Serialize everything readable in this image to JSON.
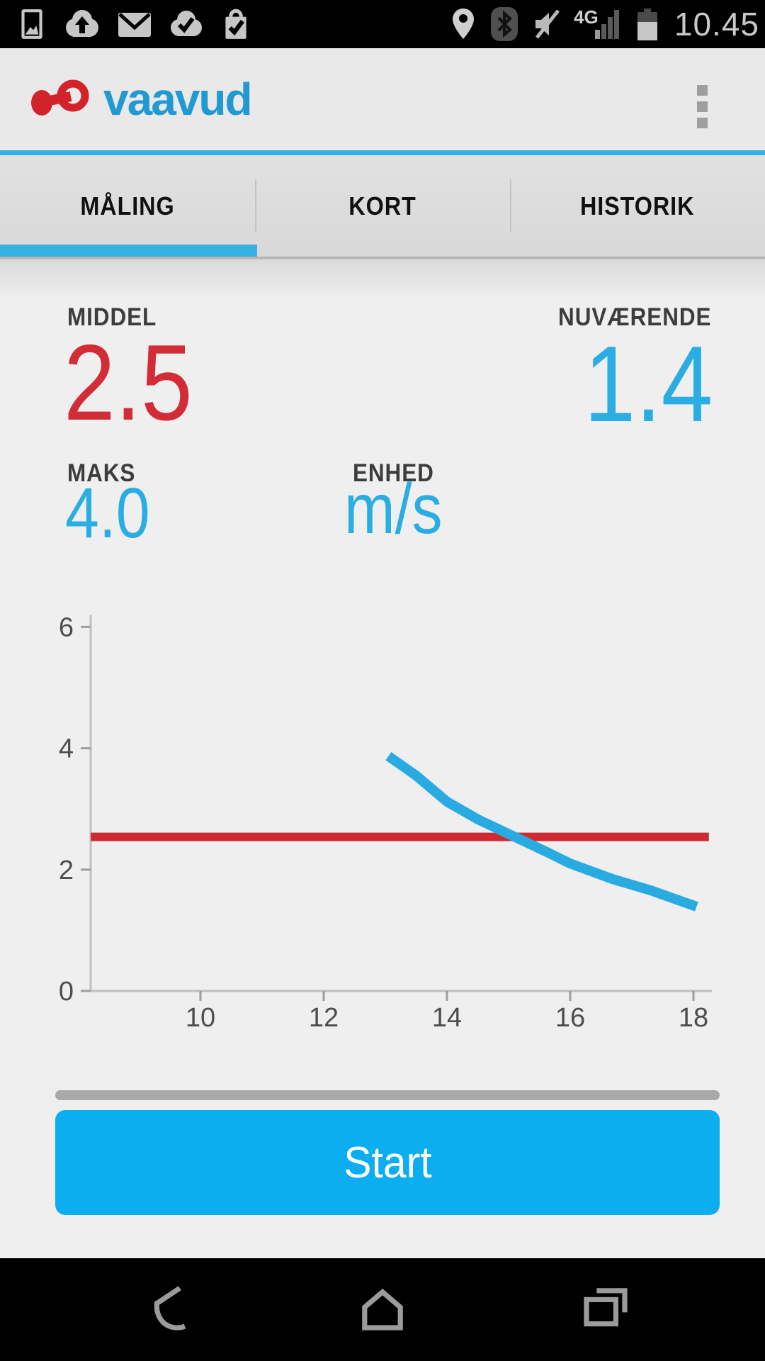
{
  "status_bar": {
    "time": "10.45",
    "network_label": "4G",
    "left_icons": [
      "gallery",
      "cloud-upload",
      "email",
      "cloud-done",
      "store-update"
    ],
    "right_icons": [
      "location",
      "bluetooth",
      "volume-muted",
      "signal-4g",
      "battery"
    ]
  },
  "header": {
    "brand": "vaavud"
  },
  "tabs": [
    {
      "label": "MÅLING",
      "active": true
    },
    {
      "label": "KORT",
      "active": false
    },
    {
      "label": "HISTORIK",
      "active": false
    }
  ],
  "stats": {
    "middel_label": "MIDDEL",
    "middel_value": "2.5",
    "nuvaerende_label": "NUVÆRENDE",
    "nuvaerende_value": "1.4",
    "maks_label": "MAKS",
    "maks_value": "4.0",
    "enhed_label": "ENHED",
    "enhed_value": "m/s"
  },
  "chart_data": {
    "type": "line",
    "title": "",
    "xlabel": "",
    "ylabel": "",
    "grid": false,
    "legend": "none",
    "x_range": [
      8.2,
      18.3
    ],
    "y_range": [
      0,
      6.2
    ],
    "x_ticks": [
      10,
      12,
      14,
      16,
      18
    ],
    "y_ticks": [
      0,
      2,
      4,
      6
    ],
    "series": [
      {
        "name": "middel-line",
        "color": "#cd2a33",
        "width": 12,
        "points": [
          [
            8.22,
            2.54
          ],
          [
            18.25,
            2.54
          ]
        ]
      },
      {
        "name": "nuvaerende-curve",
        "color": "#29abe2",
        "width": 14,
        "points": [
          [
            13.05,
            3.87
          ],
          [
            13.5,
            3.55
          ],
          [
            14.0,
            3.12
          ],
          [
            14.5,
            2.83
          ],
          [
            15.1,
            2.54
          ],
          [
            15.6,
            2.3
          ],
          [
            16.0,
            2.1
          ],
          [
            16.7,
            1.84
          ],
          [
            17.3,
            1.66
          ],
          [
            18.05,
            1.39
          ]
        ]
      }
    ]
  },
  "action": {
    "start_label": "Start"
  },
  "colors": {
    "accent_blue": "#35b2e2",
    "value_blue": "#29ade3",
    "value_red": "#d22d36",
    "chart_blue": "#29abe2",
    "chart_red": "#cd2a33",
    "button_blue": "#0caeef",
    "brand_red": "#d2232a",
    "brand_blue": "#2199d1"
  }
}
